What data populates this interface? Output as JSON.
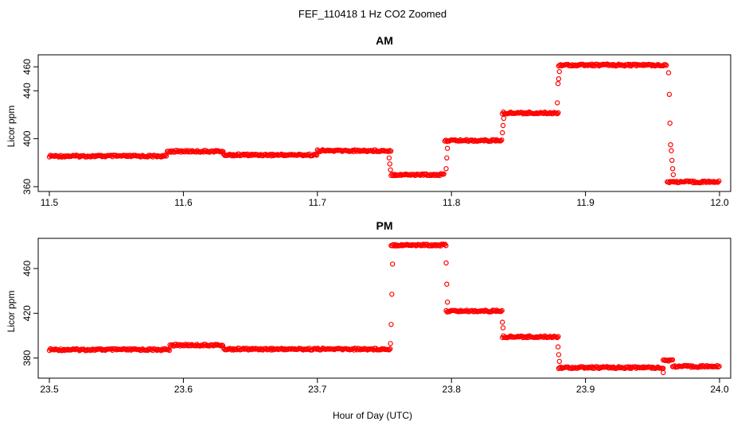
{
  "figure": {
    "title": "FEF_110418  1 Hz CO2 Zoomed",
    "xlabel": "Hour of Day (UTC)",
    "point_color": "#ff0000"
  },
  "chart_data": [
    {
      "type": "scatter",
      "title": "AM",
      "xlabel": "Hour of Day (UTC)",
      "ylabel": "Licor ppm",
      "xlim": [
        11.5,
        12.0
      ],
      "ylim": [
        356,
        470
      ],
      "xticks": [
        "11.5",
        "11.6",
        "11.7",
        "11.8",
        "11.9",
        "12.0"
      ],
      "yticks": [
        "360",
        "400",
        "440",
        "460"
      ],
      "grid": false,
      "marker": "open-circle",
      "color": "#ff0000",
      "segments": [
        {
          "x0": 11.5,
          "x1": 11.588,
          "y": 385.5
        },
        {
          "x0": 11.588,
          "x1": 11.63,
          "y": 389.5
        },
        {
          "x0": 11.63,
          "x1": 11.7,
          "y": 386.5
        },
        {
          "x0": 11.7,
          "x1": 11.755,
          "y": 390.0
        },
        {
          "x0": 11.755,
          "x1": 11.795,
          "y": 370.0
        },
        {
          "x0": 11.795,
          "x1": 11.838,
          "y": 398.5
        },
        {
          "x0": 11.838,
          "x1": 11.88,
          "y": 421.5
        },
        {
          "x0": 11.88,
          "x1": 11.961,
          "y": 461.5
        },
        {
          "x0": 11.961,
          "x1": 12.0,
          "y": 364.0
        }
      ],
      "transitions": [
        {
          "x": 11.7535,
          "y": 384
        },
        {
          "x": 11.754,
          "y": 379
        },
        {
          "x": 11.7545,
          "y": 374
        },
        {
          "x": 11.796,
          "y": 375
        },
        {
          "x": 11.7965,
          "y": 384
        },
        {
          "x": 11.797,
          "y": 392
        },
        {
          "x": 11.838,
          "y": 405
        },
        {
          "x": 11.8385,
          "y": 411
        },
        {
          "x": 11.839,
          "y": 417
        },
        {
          "x": 11.879,
          "y": 430
        },
        {
          "x": 11.8795,
          "y": 446
        },
        {
          "x": 11.88,
          "y": 450
        },
        {
          "x": 11.8805,
          "y": 456
        },
        {
          "x": 11.962,
          "y": 455
        },
        {
          "x": 11.9625,
          "y": 437
        },
        {
          "x": 11.963,
          "y": 413
        },
        {
          "x": 11.9635,
          "y": 395
        },
        {
          "x": 11.964,
          "y": 390
        },
        {
          "x": 11.9645,
          "y": 382
        },
        {
          "x": 11.965,
          "y": 375
        },
        {
          "x": 11.9655,
          "y": 370
        }
      ]
    },
    {
      "type": "scatter",
      "title": "PM",
      "xlabel": "Hour of Day (UTC)",
      "ylabel": "Licor ppm",
      "xlim": [
        23.5,
        24.0
      ],
      "ylim": [
        362,
        487
      ],
      "xticks": [
        "23.5",
        "23.6",
        "23.7",
        "23.8",
        "23.9",
        "24.0"
      ],
      "yticks": [
        "380",
        "420",
        "460"
      ],
      "grid": false,
      "marker": "open-circle",
      "color": "#ff0000",
      "segments": [
        {
          "x0": 23.5,
          "x1": 23.59,
          "y": 387.5
        },
        {
          "x0": 23.59,
          "x1": 23.63,
          "y": 391.5
        },
        {
          "x0": 23.63,
          "x1": 23.755,
          "y": 388.0
        },
        {
          "x0": 23.755,
          "x1": 23.796,
          "y": 481.0
        },
        {
          "x0": 23.796,
          "x1": 23.838,
          "y": 422.0
        },
        {
          "x0": 23.838,
          "x1": 23.88,
          "y": 399.0
        },
        {
          "x0": 23.88,
          "x1": 23.958,
          "y": 371.5
        },
        {
          "x0": 23.958,
          "x1": 23.965,
          "y": 378.0
        },
        {
          "x0": 23.965,
          "x1": 24.0,
          "y": 372.5
        }
      ],
      "transitions": [
        {
          "x": 23.7545,
          "y": 393
        },
        {
          "x": 23.755,
          "y": 410
        },
        {
          "x": 23.7555,
          "y": 437
        },
        {
          "x": 23.756,
          "y": 464
        },
        {
          "x": 23.796,
          "y": 465
        },
        {
          "x": 23.7965,
          "y": 446
        },
        {
          "x": 23.797,
          "y": 430
        },
        {
          "x": 23.838,
          "y": 412
        },
        {
          "x": 23.8385,
          "y": 407
        },
        {
          "x": 23.8795,
          "y": 390
        },
        {
          "x": 23.88,
          "y": 383
        },
        {
          "x": 23.8805,
          "y": 377
        },
        {
          "x": 23.958,
          "y": 367
        }
      ]
    }
  ]
}
